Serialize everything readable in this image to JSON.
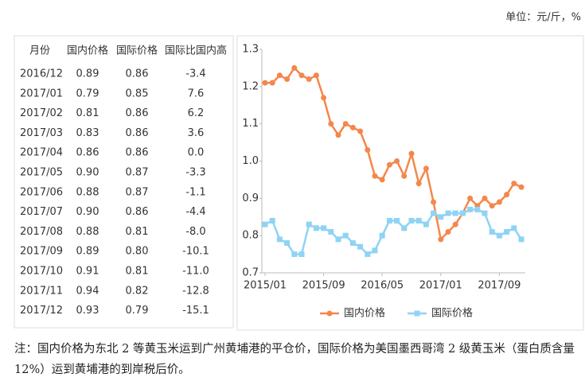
{
  "unit": "单位：元/斤，%",
  "table": {
    "header": [
      "月份",
      "国内价格",
      "国际价格",
      "国际比国内高"
    ],
    "rows": [
      [
        "2016/12",
        "0.89",
        "0.86",
        "-3.4"
      ],
      [
        "2017/01",
        "0.79",
        "0.85",
        "7.6"
      ],
      [
        "2017/02",
        "0.81",
        "0.86",
        "6.2"
      ],
      [
        "2017/03",
        "0.83",
        "0.86",
        "3.6"
      ],
      [
        "2017/04",
        "0.86",
        "0.86",
        "0.0"
      ],
      [
        "2017/05",
        "0.90",
        "0.87",
        "-3.3"
      ],
      [
        "2017/06",
        "0.88",
        "0.87",
        "-1.1"
      ],
      [
        "2017/07",
        "0.90",
        "0.86",
        "-4.4"
      ],
      [
        "2017/08",
        "0.88",
        "0.81",
        "-8.0"
      ],
      [
        "2017/09",
        "0.89",
        "0.80",
        "-10.1"
      ],
      [
        "2017/10",
        "0.91",
        "0.81",
        "-11.0"
      ],
      [
        "2017/11",
        "0.94",
        "0.82",
        "-12.8"
      ],
      [
        "2017/12",
        "0.93",
        "0.79",
        "-15.1"
      ]
    ]
  },
  "chart_data": {
    "type": "line",
    "categories": [
      "2015/01",
      null,
      null,
      null,
      null,
      null,
      null,
      null,
      "2015/09",
      null,
      null,
      null,
      null,
      null,
      null,
      null,
      "2016/05",
      null,
      null,
      null,
      null,
      null,
      null,
      null,
      "2017/01",
      null,
      null,
      null,
      null,
      null,
      null,
      null,
      "2017/09",
      null,
      null,
      null
    ],
    "series": [
      {
        "name": "国内价格",
        "color": "#f4874b",
        "marker": "circle",
        "values": [
          1.21,
          1.21,
          1.23,
          1.22,
          1.25,
          1.23,
          1.22,
          1.23,
          1.17,
          1.1,
          1.07,
          1.1,
          1.09,
          1.08,
          1.03,
          0.96,
          0.95,
          0.99,
          1.0,
          0.96,
          1.02,
          0.94,
          0.98,
          0.89,
          0.79,
          0.81,
          0.83,
          0.86,
          0.9,
          0.88,
          0.9,
          0.88,
          0.89,
          0.91,
          0.94,
          0.93
        ]
      },
      {
        "name": "国际价格",
        "color": "#8fd3f5",
        "marker": "square",
        "values": [
          0.83,
          0.84,
          0.79,
          0.78,
          0.75,
          0.75,
          0.83,
          0.82,
          0.82,
          0.81,
          0.79,
          0.8,
          0.78,
          0.77,
          0.75,
          0.76,
          0.8,
          0.84,
          0.84,
          0.82,
          0.84,
          0.84,
          0.83,
          0.86,
          0.85,
          0.86,
          0.86,
          0.86,
          0.87,
          0.87,
          0.86,
          0.81,
          0.8,
          0.81,
          0.82,
          0.79
        ]
      }
    ],
    "ylim": [
      0.7,
      1.3
    ],
    "yticks": [
      0.7,
      0.8,
      0.9,
      {
        "value": 1,
        "label": "1.0"
      },
      1.1,
      1.2,
      1.3
    ],
    "legend": "bottom"
  },
  "note": "注：国内价格为东北 2 等黄玉米运到广州黄埔港的平仓价，国际价格为美国墨西哥湾 2 级黄玉米（蛋白质含量 12%）运到黄埔港的到岸税后价。"
}
